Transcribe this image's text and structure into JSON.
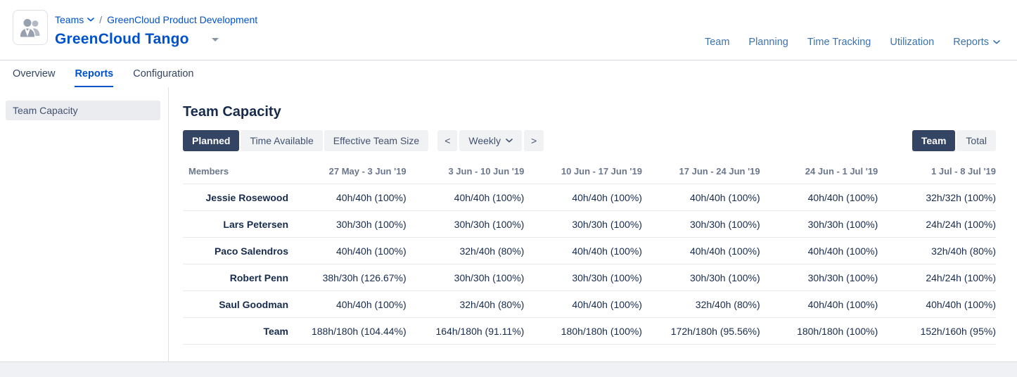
{
  "colors": {
    "accent_blue": "#0052cc",
    "nav_blue": "#3b73af",
    "over_capacity_orange": "#ffab00",
    "active_button_navy": "#344563"
  },
  "header": {
    "breadcrumb": {
      "teams_label": "Teams",
      "separator": "/",
      "parent_team": "GreenCloud Product Development"
    },
    "team_title": "GreenCloud Tango",
    "nav": [
      {
        "label": "Team"
      },
      {
        "label": "Planning"
      },
      {
        "label": "Time Tracking"
      },
      {
        "label": "Utilization"
      },
      {
        "label": "Reports",
        "has_dropdown": true
      }
    ]
  },
  "tabs": [
    {
      "label": "Overview",
      "active": false
    },
    {
      "label": "Reports",
      "active": true
    },
    {
      "label": "Configuration",
      "active": false
    }
  ],
  "sidebar": {
    "items": [
      {
        "label": "Team Capacity",
        "active": true
      }
    ]
  },
  "report": {
    "title": "Team Capacity",
    "view_buttons": [
      {
        "label": "Planned",
        "active": true
      },
      {
        "label": "Time Available",
        "active": false
      },
      {
        "label": "Effective Team Size",
        "active": false
      }
    ],
    "period_nav": {
      "prev": "<",
      "granularity": "Weekly",
      "next": ">"
    },
    "scope_toggle": [
      {
        "label": "Team",
        "active": true
      },
      {
        "label": "Total",
        "active": false
      }
    ]
  },
  "capacity_table": {
    "columns": [
      "Members",
      "27 May - 3 Jun '19",
      "3 Jun - 10 Jun '19",
      "10 Jun - 17 Jun '19",
      "17 Jun - 24 Jun '19",
      "24 Jun - 1 Jul '19",
      "1 Jul - 8 Jul '19"
    ],
    "rows": [
      {
        "member": "Jessie Rosewood",
        "total": false,
        "values": [
          {
            "text": "40h/40h (100%)",
            "over_capacity": false
          },
          {
            "text": "40h/40h (100%)",
            "over_capacity": false
          },
          {
            "text": "40h/40h (100%)",
            "over_capacity": false
          },
          {
            "text": "40h/40h (100%)",
            "over_capacity": false
          },
          {
            "text": "40h/40h (100%)",
            "over_capacity": false
          },
          {
            "text": "32h/32h (100%)",
            "over_capacity": false
          }
        ]
      },
      {
        "member": "Lars Petersen",
        "total": false,
        "values": [
          {
            "text": "30h/30h (100%)",
            "over_capacity": false
          },
          {
            "text": "30h/30h (100%)",
            "over_capacity": false
          },
          {
            "text": "30h/30h (100%)",
            "over_capacity": false
          },
          {
            "text": "30h/30h (100%)",
            "over_capacity": false
          },
          {
            "text": "30h/30h (100%)",
            "over_capacity": false
          },
          {
            "text": "24h/24h (100%)",
            "over_capacity": false
          }
        ]
      },
      {
        "member": "Paco Salendros",
        "total": false,
        "values": [
          {
            "text": "40h/40h (100%)",
            "over_capacity": false
          },
          {
            "text": "32h/40h (80%)",
            "over_capacity": false
          },
          {
            "text": "40h/40h (100%)",
            "over_capacity": false
          },
          {
            "text": "40h/40h (100%)",
            "over_capacity": false
          },
          {
            "text": "40h/40h (100%)",
            "over_capacity": false
          },
          {
            "text": "32h/40h (80%)",
            "over_capacity": false
          }
        ]
      },
      {
        "member": "Robert Penn",
        "total": false,
        "values": [
          {
            "text": "38h/30h (126.67%)",
            "over_capacity": true
          },
          {
            "text": "30h/30h (100%)",
            "over_capacity": false
          },
          {
            "text": "30h/30h (100%)",
            "over_capacity": false
          },
          {
            "text": "30h/30h (100%)",
            "over_capacity": false
          },
          {
            "text": "30h/30h (100%)",
            "over_capacity": false
          },
          {
            "text": "24h/24h (100%)",
            "over_capacity": false
          }
        ]
      },
      {
        "member": "Saul Goodman",
        "total": false,
        "values": [
          {
            "text": "40h/40h (100%)",
            "over_capacity": false
          },
          {
            "text": "32h/40h (80%)",
            "over_capacity": false
          },
          {
            "text": "40h/40h (100%)",
            "over_capacity": false
          },
          {
            "text": "32h/40h (80%)",
            "over_capacity": false
          },
          {
            "text": "40h/40h (100%)",
            "over_capacity": false
          },
          {
            "text": "40h/40h (100%)",
            "over_capacity": false
          }
        ]
      },
      {
        "member": "Team",
        "total": true,
        "values": [
          {
            "text": "188h/180h (104.44%)",
            "over_capacity": true
          },
          {
            "text": "164h/180h (91.11%)",
            "over_capacity": false
          },
          {
            "text": "180h/180h (100%)",
            "over_capacity": false
          },
          {
            "text": "172h/180h (95.56%)",
            "over_capacity": false
          },
          {
            "text": "180h/180h (100%)",
            "over_capacity": false
          },
          {
            "text": "152h/160h (95%)",
            "over_capacity": false
          }
        ]
      }
    ]
  }
}
